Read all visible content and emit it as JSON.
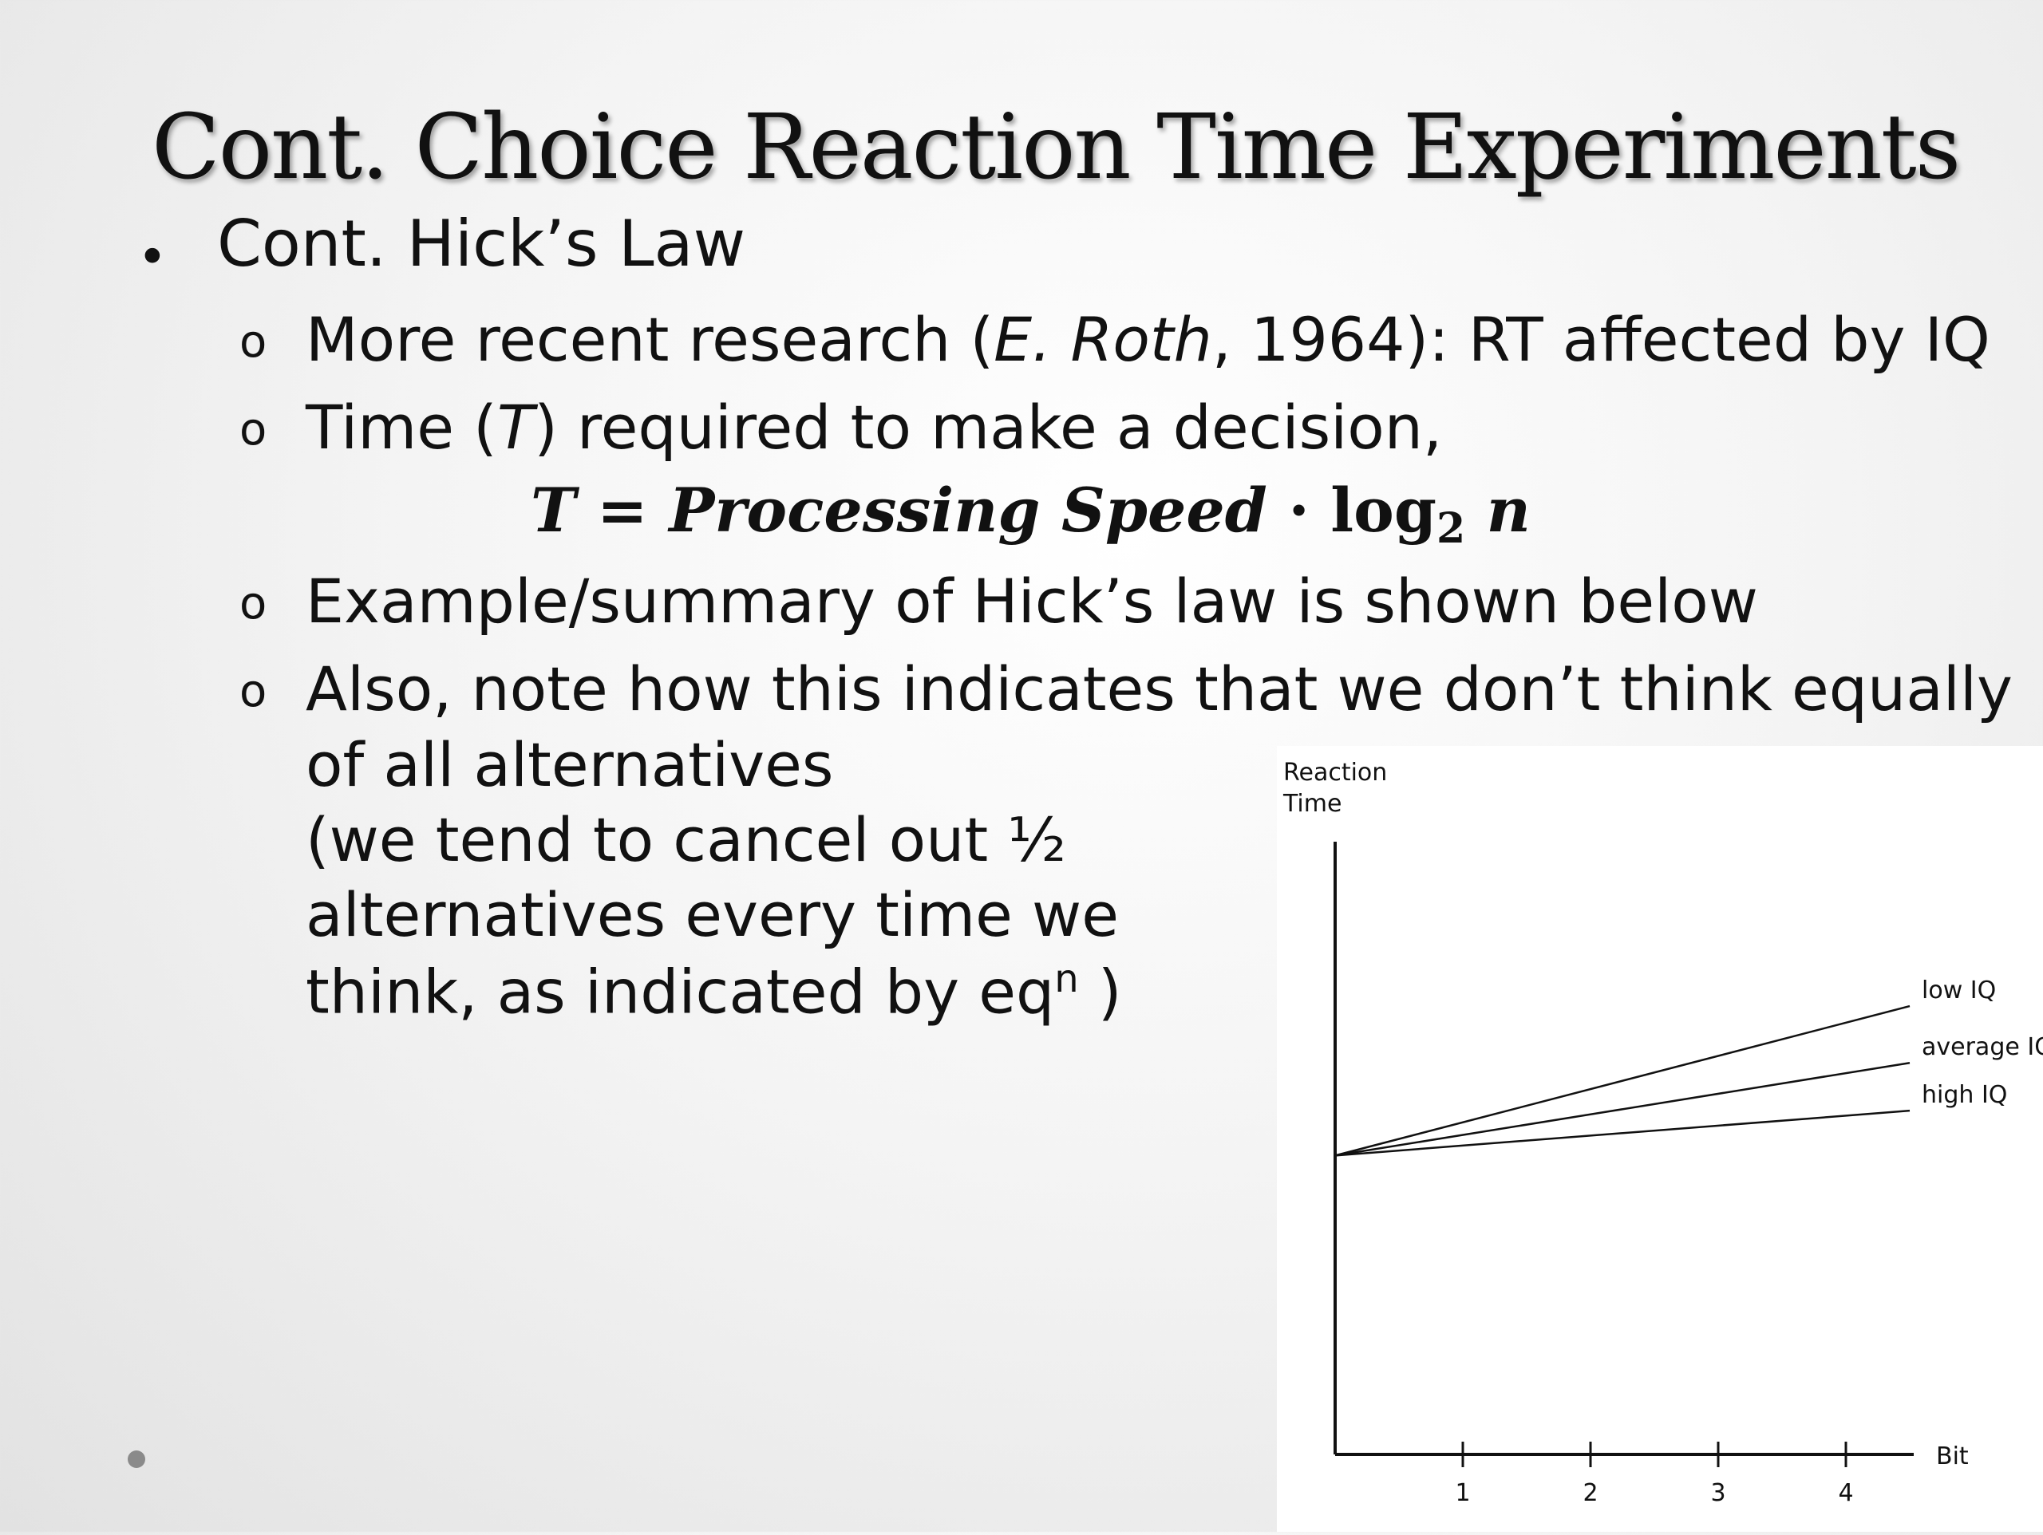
{
  "slide": {
    "title": "Cont. Choice Reaction Time Experiments",
    "main_bullet": "Cont. Hick’s Law",
    "bullets": {
      "b1_prefix": "More recent research (",
      "b1_italic": "E. Roth",
      "b1_suffix": ", 1964): RT affected by IQ",
      "b2_prefix": "Time (",
      "b2_italic": "T",
      "b2_suffix": ") required to make a decision,",
      "b3": "Example/summary of Hick’s law is shown below",
      "b4_line1": "Also, note how this indicates that we don’t think equally",
      "b4_line2": "of all alternatives",
      "b4_line3": "(we tend to cancel out ½",
      "b4_line4": "alternatives every time we",
      "b4_line5_prefix": "think, as indicated by eq",
      "b4_line5_sup": "n",
      "b4_line5_suffix": " )"
    },
    "equation": {
      "lhs": "T",
      "equals": "=",
      "term": "Processing Speed",
      "dot": "·",
      "log": "log",
      "base": "2",
      "var": "n"
    },
    "bullet_glyphs": {
      "main": "•",
      "sub": "o"
    }
  },
  "chart_data": {
    "type": "line",
    "ylabel_line1": "Reaction",
    "ylabel_line2": "Time",
    "xlabel": "Bit",
    "x_ticks": [
      "1",
      "2",
      "3",
      "4"
    ],
    "series": [
      {
        "name": "low IQ",
        "x": [
          0,
          4.5
        ],
        "y": [
          0,
          0.5
        ]
      },
      {
        "name": "average IQ",
        "x": [
          0,
          4.5
        ],
        "y": [
          0,
          0.31
        ]
      },
      {
        "name": "high IQ",
        "x": [
          0,
          4.5
        ],
        "y": [
          0,
          0.15
        ]
      }
    ],
    "xlim": [
      0,
      5
    ],
    "ylim": [
      -1,
      1.05
    ],
    "grid": false,
    "legend": "labels at line ends"
  }
}
